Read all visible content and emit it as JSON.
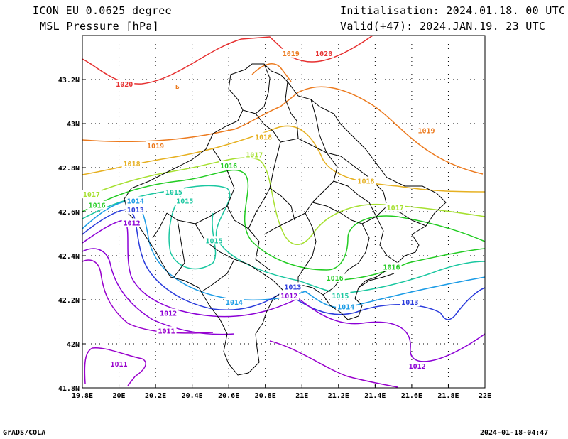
{
  "header": {
    "model": "ICON EU 0.0625 degree",
    "field": "MSL Pressure [hPa]",
    "init": "Initialisation: 2024.01.18. 00 UTC",
    "valid": "Valid(+47): 2024.JAN.19. 23 UTC"
  },
  "footer": {
    "left": "GrADS/COLA",
    "right": "2024-01-18-04:47"
  },
  "map": {
    "lon_range": [
      19.8,
      22.0
    ],
    "lat_range": [
      41.8,
      43.4
    ],
    "x_ticks": [
      "19.8E",
      "20E",
      "20.2E",
      "20.4E",
      "20.6E",
      "20.8E",
      "21E",
      "21.2E",
      "21.4E",
      "21.6E",
      "21.8E",
      "22E"
    ],
    "y_ticks": [
      "41.8N",
      "42N",
      "42.2N",
      "42.4N",
      "42.6N",
      "42.8N",
      "43N",
      "43.2N"
    ],
    "grid": true,
    "isobar_colors": {
      "1011": "#9900cc",
      "1012": "#8c00d6",
      "1013": "#2b3cdc",
      "1014": "#1a9be6",
      "1015": "#19c7a0",
      "1016": "#22cc22",
      "1017": "#a6e030",
      "1018": "#e6b020",
      "1019": "#ec7a1e",
      "1020": "#e63030"
    },
    "contour_labels": [
      {
        "text": "1020",
        "lon": 20.03,
        "lat": 43.18
      },
      {
        "text": "1020",
        "lon": 21.12,
        "lat": 43.32
      },
      {
        "text": "1019",
        "lon": 20.94,
        "lat": 43.32
      },
      {
        "text": "1019",
        "lon": 20.2,
        "lat": 42.9
      },
      {
        "text": "1019",
        "lon": 21.68,
        "lat": 42.97
      },
      {
        "text": "1018",
        "lon": 20.07,
        "lat": 42.82
      },
      {
        "text": "1018",
        "lon": 20.79,
        "lat": 42.94
      },
      {
        "text": "1018",
        "lon": 21.35,
        "lat": 42.74
      },
      {
        "text": "1017",
        "lon": 19.85,
        "lat": 42.68
      },
      {
        "text": "1017",
        "lon": 20.74,
        "lat": 42.86
      },
      {
        "text": "1017",
        "lon": 21.51,
        "lat": 42.62
      },
      {
        "text": "1016",
        "lon": 19.88,
        "lat": 42.63
      },
      {
        "text": "1016",
        "lon": 20.6,
        "lat": 42.81
      },
      {
        "text": "1016",
        "lon": 21.18,
        "lat": 42.3
      },
      {
        "text": "1016",
        "lon": 21.49,
        "lat": 42.35
      },
      {
        "text": "1015",
        "lon": 20.3,
        "lat": 42.69
      },
      {
        "text": "1015",
        "lon": 20.36,
        "lat": 42.65
      },
      {
        "text": "1015",
        "lon": 20.52,
        "lat": 42.47
      },
      {
        "text": "1015",
        "lon": 21.21,
        "lat": 42.22
      },
      {
        "text": "1014",
        "lon": 20.09,
        "lat": 42.65
      },
      {
        "text": "1014",
        "lon": 20.63,
        "lat": 42.19
      },
      {
        "text": "1014",
        "lon": 21.24,
        "lat": 42.17
      },
      {
        "text": "1013",
        "lon": 20.09,
        "lat": 42.61
      },
      {
        "text": "1013",
        "lon": 20.95,
        "lat": 42.26
      },
      {
        "text": "1013",
        "lon": 21.59,
        "lat": 42.19
      },
      {
        "text": "1012",
        "lon": 20.07,
        "lat": 42.55
      },
      {
        "text": "1012",
        "lon": 20.93,
        "lat": 42.22
      },
      {
        "text": "1012",
        "lon": 20.27,
        "lat": 42.14
      },
      {
        "text": "1012",
        "lon": 21.63,
        "lat": 41.9
      },
      {
        "text": "1011",
        "lon": 20.26,
        "lat": 42.06
      },
      {
        "text": "1011",
        "lon": 20.0,
        "lat": 41.91
      }
    ]
  }
}
